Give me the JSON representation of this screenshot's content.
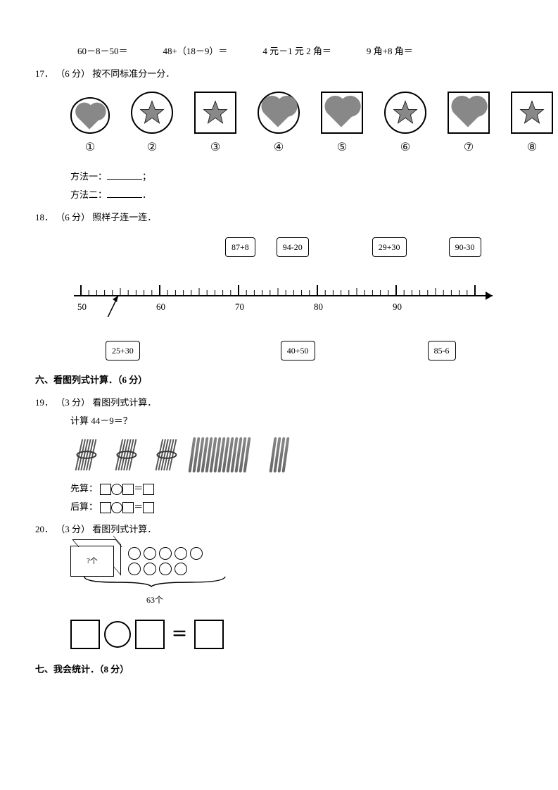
{
  "equations": {
    "e1": "60－8－50＝",
    "e2": "48+（18－9）＝",
    "e3": "4 元－1 元 2 角＝",
    "e4": "9 角+8 角＝"
  },
  "q17": {
    "num": "17．",
    "pts": "（6 分）",
    "title": "按不同标准分一分．",
    "labels": [
      "①",
      "②",
      "③",
      "④",
      "⑤",
      "⑥",
      "⑦",
      "⑧"
    ],
    "m1_label": "方法一：",
    "m1_end": "；",
    "m2_label": "方法二：",
    "m2_end": "．"
  },
  "q18": {
    "num": "18．",
    "pts": "（6 分）",
    "title": "照样子连一连．",
    "top_boxes": [
      "87+8",
      "94-20",
      "29+30",
      "90-30"
    ],
    "ticks": [
      "50",
      "60",
      "70",
      "80",
      "90"
    ],
    "bot_boxes": [
      "25+30",
      "40+50",
      "85-6"
    ],
    "numberline": {
      "start": 50,
      "end": 100,
      "major_step": 10,
      "minor_step": 1,
      "colors": {
        "line": "#000",
        "background": "#fff"
      }
    }
  },
  "sec6": {
    "title": "六、看图列式计算．（6 分）"
  },
  "q19": {
    "num": "19．",
    "pts": "（3 分）",
    "title": "看图列式计算．",
    "expr": "计算 44－9＝？",
    "first": "先算：",
    "then": "后算：",
    "pattern_tail": "＝□",
    "bundles": 3,
    "loose_sticks": 14,
    "extra_sticks": 4
  },
  "q20": {
    "num": "20．",
    "pts": "（3 分）",
    "title": "看图列式计算．",
    "box_label": "?个",
    "total": "63个",
    "circles": 9
  },
  "sec7": {
    "title": "七、我会统计．（8 分）"
  },
  "colors": {
    "text": "#000000",
    "fill_shape": "#888888",
    "background": "#ffffff",
    "border": "#000000"
  },
  "fonts": {
    "body_family": "SimSun",
    "body_size_pt": 10
  }
}
